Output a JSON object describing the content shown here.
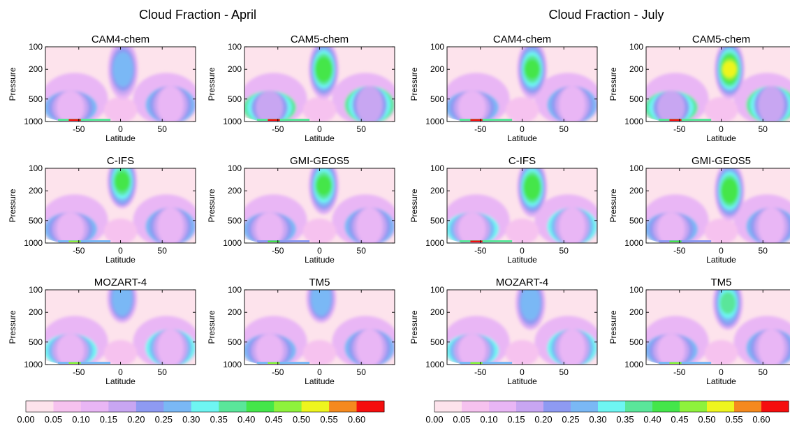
{
  "figure": {
    "groups": [
      {
        "title": "Cloud Fraction - April",
        "panels": [
          {
            "title": "CAM4-chem"
          },
          {
            "title": "CAM5-chem"
          },
          {
            "title": "C-IFS"
          },
          {
            "title": "GMI-GEOS5"
          },
          {
            "title": "MOZART-4"
          },
          {
            "title": "TM5"
          }
        ]
      },
      {
        "title": "Cloud Fraction - July",
        "panels": [
          {
            "title": "CAM4-chem"
          },
          {
            "title": "CAM5-chem"
          },
          {
            "title": "C-IFS"
          },
          {
            "title": "GMI-GEOS5"
          },
          {
            "title": "MOZART-4"
          },
          {
            "title": "TM5"
          }
        ]
      }
    ],
    "colorbar": {
      "levels": [
        "0.00",
        "0.05",
        "0.10",
        "0.15",
        "0.20",
        "0.25",
        "0.30",
        "0.35",
        "0.40",
        "0.45",
        "0.50",
        "0.55",
        "0.60"
      ],
      "colors": [
        "#fde3ec",
        "#f6c2ef",
        "#e9b6f5",
        "#c8a6f2",
        "#8e9af2",
        "#7ab8f5",
        "#6ef5f2",
        "#5ae69a",
        "#44e64a",
        "#8ef23c",
        "#eef51e",
        "#f5891e",
        "#f50e0e"
      ]
    }
  },
  "chart_data": {
    "type": "heatmap",
    "quantity": "Cloud Fraction",
    "xlabel": "Latitude",
    "ylabel": "Pressure",
    "xlim": [
      -90,
      90
    ],
    "ylim": [
      1000,
      100
    ],
    "xticks": [
      -50,
      0,
      50
    ],
    "yticks": [
      100,
      200,
      500,
      1000
    ],
    "yscale": "log",
    "color_levels": [
      0.0,
      0.05,
      0.1,
      0.15,
      0.2,
      0.25,
      0.3,
      0.35,
      0.4,
      0.45,
      0.5,
      0.55,
      0.6
    ],
    "models": [
      "CAM4-chem",
      "CAM5-chem",
      "C-IFS",
      "GMI-GEOS5",
      "MOZART-4",
      "TM5"
    ],
    "months": [
      "April",
      "July"
    ],
    "features": {
      "April": {
        "CAM4-chem": {
          "tropical_max": 0.3,
          "tropical_max_lat": 3,
          "tropical_max_pressure": 200,
          "midlat_band": 0.25,
          "surface_max": 0.6
        },
        "CAM5-chem": {
          "tropical_max": 0.45,
          "tropical_max_lat": 5,
          "tropical_max_pressure": 200,
          "midlat_band": 0.35,
          "surface_max": 0.6
        },
        "C-IFS": {
          "tropical_max": 0.4,
          "tropical_max_lat": 2,
          "tropical_max_pressure": 150,
          "midlat_band": 0.25,
          "surface_max": 0.45
        },
        "GMI-GEOS5": {
          "tropical_max": 0.4,
          "tropical_max_lat": 5,
          "tropical_max_pressure": 170,
          "midlat_band": 0.25,
          "surface_max": 0.4
        },
        "MOZART-4": {
          "tropical_max": 0.3,
          "tropical_max_lat": 2,
          "tropical_max_pressure": 130,
          "midlat_band": 0.3,
          "surface_max": 0.45
        },
        "TM5": {
          "tropical_max": 0.3,
          "tropical_max_lat": 2,
          "tropical_max_pressure": 130,
          "midlat_band": 0.25,
          "surface_max": 0.45
        }
      },
      "July": {
        "CAM4-chem": {
          "tropical_max": 0.4,
          "tropical_max_lat": 12,
          "tropical_max_pressure": 200,
          "midlat_band": 0.25,
          "surface_max": 0.6
        },
        "CAM5-chem": {
          "tropical_max": 0.5,
          "tropical_max_lat": 10,
          "tropical_max_pressure": 200,
          "midlat_band": 0.35,
          "surface_max": 0.6
        },
        "C-IFS": {
          "tropical_max": 0.45,
          "tropical_max_lat": 12,
          "tropical_max_pressure": 180,
          "midlat_band": 0.3,
          "surface_max": 0.6
        },
        "GMI-GEOS5": {
          "tropical_max": 0.45,
          "tropical_max_lat": 10,
          "tropical_max_pressure": 200,
          "midlat_band": 0.25,
          "surface_max": 0.4
        },
        "MOZART-4": {
          "tropical_max": 0.3,
          "tropical_max_lat": 10,
          "tropical_max_pressure": 150,
          "midlat_band": 0.3,
          "surface_max": 0.45
        },
        "TM5": {
          "tropical_max": 0.35,
          "tropical_max_lat": 8,
          "tropical_max_pressure": 150,
          "midlat_band": 0.25,
          "surface_max": 0.45
        }
      }
    }
  }
}
